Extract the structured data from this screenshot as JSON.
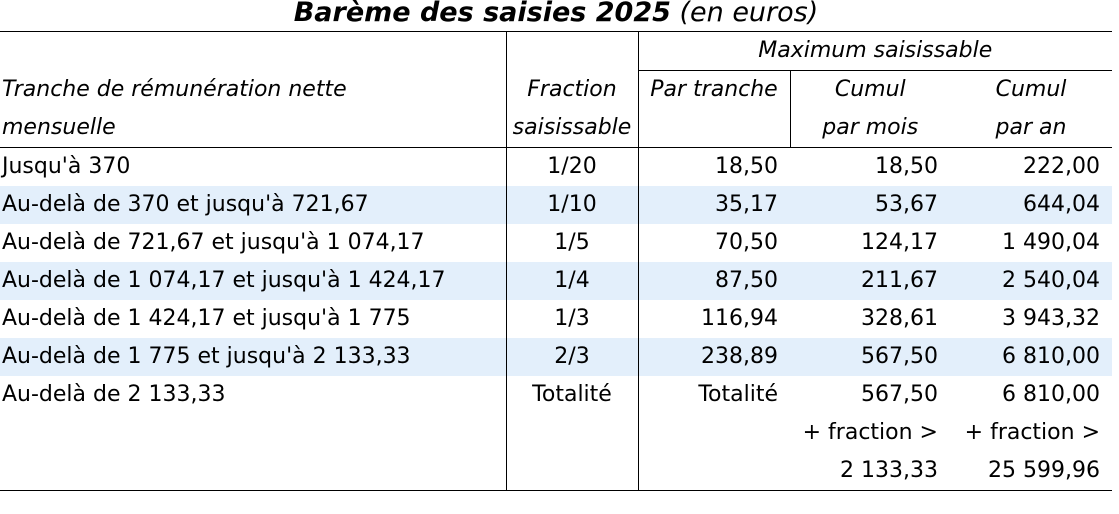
{
  "title": {
    "main": "Barème des saisies 2025",
    "suffix": "(en euros)"
  },
  "headers": {
    "group": "Maximum saisissable",
    "tranche_line1": "Tranche de rémunération nette",
    "tranche_line2": "mensuelle",
    "fraction_line1": "Fraction",
    "fraction_line2": "saisissable",
    "par_tranche": "Par tranche",
    "cumul_mois_line1": "Cumul",
    "cumul_mois_line2": "par mois",
    "cumul_an_line1": "Cumul",
    "cumul_an_line2": "par an"
  },
  "rows": [
    {
      "tranche": "Jusqu'à 370",
      "fraction": "1/20",
      "par_tranche": "18,50",
      "cumul_mois": "18,50",
      "cumul_an": "222,00"
    },
    {
      "tranche": "Au-delà de 370 et jusqu'à 721,67",
      "fraction": "1/10",
      "par_tranche": "35,17",
      "cumul_mois": "53,67",
      "cumul_an": "644,04"
    },
    {
      "tranche": "Au-delà de 721,67 et jusqu'à 1 074,17",
      "fraction": "1/5",
      "par_tranche": "70,50",
      "cumul_mois": "124,17",
      "cumul_an": "1 490,04"
    },
    {
      "tranche": "Au-delà de 1 074,17 et jusqu'à 1 424,17",
      "fraction": "1/4",
      "par_tranche": "87,50",
      "cumul_mois": "211,67",
      "cumul_an": "2 540,04"
    },
    {
      "tranche": "Au-delà de 1 424,17 et jusqu'à 1 775",
      "fraction": "1/3",
      "par_tranche": "116,94",
      "cumul_mois": "328,61",
      "cumul_an": "3 943,32"
    },
    {
      "tranche": "Au-delà de 1 775 et jusqu'à 2 133,33",
      "fraction": "2/3",
      "par_tranche": "238,89",
      "cumul_mois": "567,50",
      "cumul_an": "6 810,00"
    }
  ],
  "last_row": {
    "tranche": "Au-delà de 2 133,33",
    "fraction": "Totalité",
    "par_tranche": "Totalité",
    "cumul_mois": [
      "567,50",
      "+ fraction >",
      "2 133,33"
    ],
    "cumul_an": [
      "6 810,00",
      "+ fraction >",
      "25 599,96"
    ]
  },
  "colors": {
    "row_shade": "#e3effb",
    "border": "#000000"
  }
}
